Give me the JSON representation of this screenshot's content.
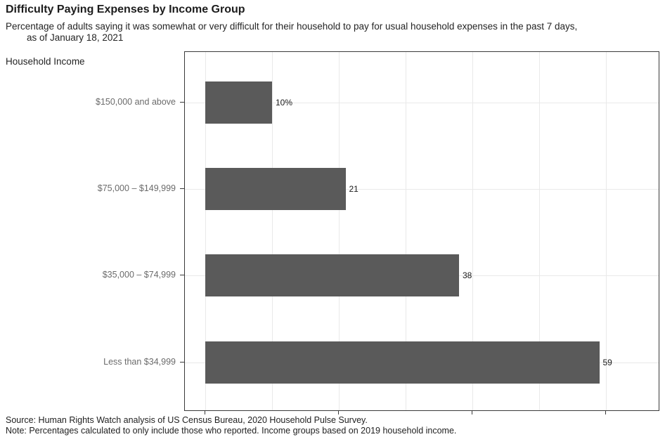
{
  "chart_data": {
    "type": "bar",
    "orientation": "horizontal",
    "title": "Difficulty Paying Expenses by Income Group",
    "subtitle_line1": "Percentage of adults saying it was somewhat or very difficult for their household to pay for usual household expenses in the past 7 days,",
    "subtitle_line2": "as of January 18, 2021",
    "axis_label": "Household Income",
    "categories": [
      "$150,000 and above",
      "$75,000 – $149,999",
      "$35,000 – $74,999",
      "Less than $34,999"
    ],
    "values": [
      10,
      21,
      38,
      59
    ],
    "value_labels": [
      "10%",
      "21",
      "38",
      "59"
    ],
    "xlim": [
      0,
      68
    ],
    "x_major_ticks": [
      0,
      20,
      40,
      60
    ],
    "x_gridlines": [
      0,
      10,
      20,
      30,
      40,
      50,
      60
    ],
    "grid": "vertical gridlines every 10 units; one horizontal gridline per category center",
    "legend": "none",
    "bar_color": "#5a5a5a",
    "gridline_color": "#e9e9e9",
    "panel_border_color": "#3a3a3a",
    "source": "Source: Human Rights Watch analysis of US Census Bureau, 2020 Household Pulse Survey.",
    "note": "Note: Percentages calculated to only include those who reported. Income groups based on 2019 household income."
  }
}
